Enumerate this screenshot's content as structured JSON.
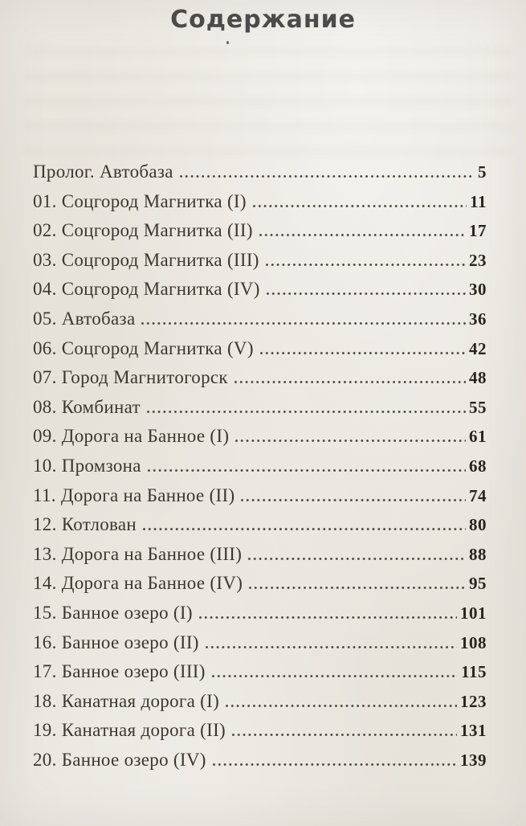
{
  "page": {
    "title": "Содержание"
  },
  "toc": {
    "entries": [
      {
        "label": "Пролог. Автобаза",
        "page": "5"
      },
      {
        "label": "01. Соцгород Магнитка (I)",
        "page": "11"
      },
      {
        "label": "02. Соцгород Магнитка (II)",
        "page": "17"
      },
      {
        "label": "03. Соцгород Магнитка (III)",
        "page": "23"
      },
      {
        "label": "04. Соцгород Магнитка (IV)",
        "page": "30"
      },
      {
        "label": "05. Автобаза",
        "page": "36"
      },
      {
        "label": "06. Соцгород Магнитка (V)",
        "page": "42"
      },
      {
        "label": "07. Город Магнитогорск",
        "page": "48"
      },
      {
        "label": "08. Комбинат",
        "page": "55"
      },
      {
        "label": "09. Дорога на Банное (I)",
        "page": "61"
      },
      {
        "label": "10. Промзона",
        "page": "68"
      },
      {
        "label": "11. Дорога на Банное (II)",
        "page": "74"
      },
      {
        "label": "12. Котлован",
        "page": "80"
      },
      {
        "label": "13. Дорога на Банное (III)",
        "page": "88"
      },
      {
        "label": "14. Дорога на Банное (IV)",
        "page": "95"
      },
      {
        "label": "15. Банное озеро (I)",
        "page": "101"
      },
      {
        "label": "16. Банное озеро (II)",
        "page": "108"
      },
      {
        "label": "17. Банное озеро (III)",
        "page": "115"
      },
      {
        "label": "18. Канатная дорога (I)",
        "page": "123"
      },
      {
        "label": "19. Канатная дорога (II)",
        "page": "131"
      },
      {
        "label": "20. Банное озеро (IV)",
        "page": "139"
      }
    ]
  },
  "colors": {
    "paper": "#eae7e0",
    "title_text": "#4b4b4b",
    "entry_text": "#3d372e",
    "page_number_text": "#29241c",
    "dot_leader": "#453f35"
  }
}
